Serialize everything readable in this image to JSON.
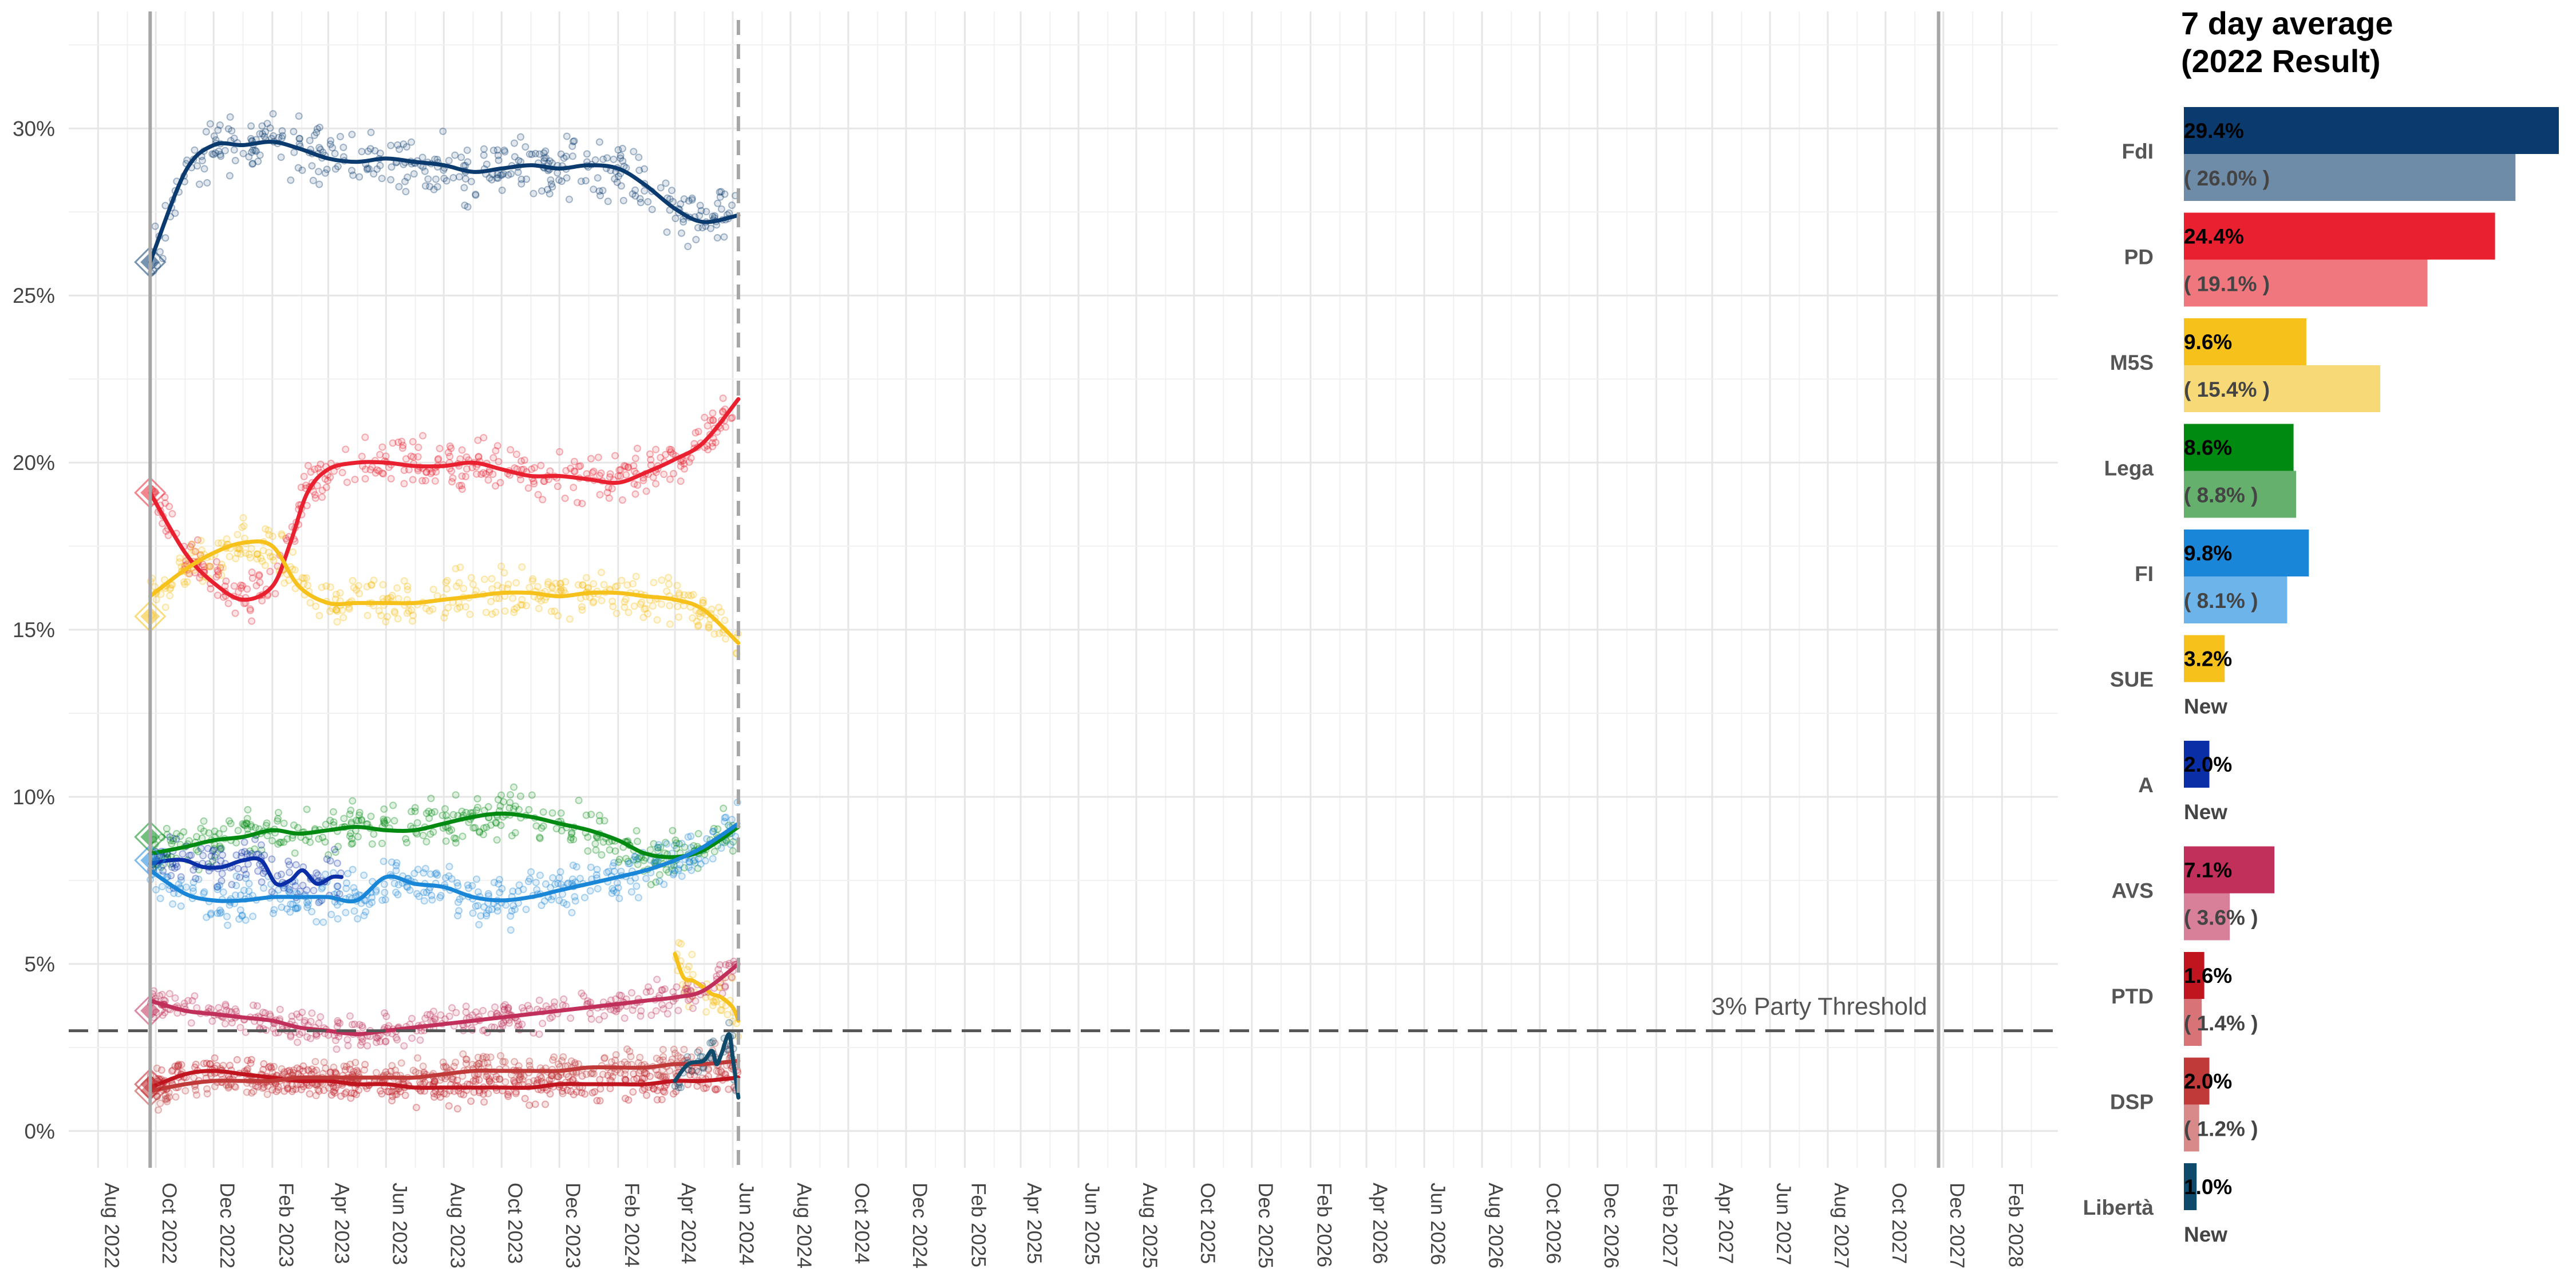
{
  "chart_data": [
    {
      "type": "scatter",
      "title": "",
      "xlabel": "",
      "ylabel": "",
      "ylim": [
        -1.1,
        33.5
      ],
      "xlim": [
        "2022-07-01",
        "2028-03-31"
      ],
      "x_ticks": [
        "Aug 2022",
        "Oct 2022",
        "Dec 2022",
        "Feb 2023",
        "Apr 2023",
        "Jun 2023",
        "Aug 2023",
        "Oct 2023",
        "Dec 2023",
        "Feb 2024",
        "Apr 2024",
        "Jun 2024",
        "Aug 2024",
        "Oct 2024",
        "Dec 2024",
        "Feb 2025",
        "Apr 2025",
        "Jun 2025",
        "Aug 2025",
        "Oct 2025",
        "Dec 2025",
        "Feb 2026",
        "Apr 2026",
        "Jun 2026",
        "Aug 2026",
        "Oct 2026",
        "Dec 2026",
        "Feb 2027",
        "Apr 2027",
        "Jun 2027",
        "Aug 2027",
        "Oct 2027",
        "Dec 2027",
        "Feb 2028"
      ],
      "x_tick_dates": [
        "2022-08-01",
        "2022-10-01",
        "2022-12-01",
        "2023-02-01",
        "2023-04-01",
        "2023-06-01",
        "2023-08-01",
        "2023-10-01",
        "2023-12-01",
        "2024-02-01",
        "2024-04-01",
        "2024-06-01",
        "2024-08-01",
        "2024-10-01",
        "2024-12-01",
        "2025-02-01",
        "2025-04-01",
        "2025-06-01",
        "2025-08-01",
        "2025-10-01",
        "2025-12-01",
        "2026-02-01",
        "2026-04-01",
        "2026-06-01",
        "2026-08-01",
        "2026-10-01",
        "2026-12-01",
        "2027-02-01",
        "2027-04-01",
        "2027-06-01",
        "2027-08-01",
        "2027-10-01",
        "2027-12-01",
        "2028-02-01"
      ],
      "y_ticks": [
        0,
        5,
        10,
        15,
        20,
        25,
        30
      ],
      "y_tick_labels": [
        "0%",
        "5%",
        "10%",
        "15%",
        "20%",
        "25%",
        "30%"
      ],
      "grid": true,
      "threshold": {
        "value": 3,
        "label": "3% Party Threshold"
      },
      "election_date": "2022-09-25",
      "latest_date": "2024-06-07",
      "next_election_date": "2027-11-26",
      "series": [
        {
          "name": "FdI",
          "color": "#0a3a6e",
          "result_2022": 26.0,
          "x": [
            "2022-09-25",
            "2022-11-01",
            "2022-12-01",
            "2023-01-01",
            "2023-02-01",
            "2023-03-01",
            "2023-04-01",
            "2023-05-01",
            "2023-06-01",
            "2023-07-01",
            "2023-08-01",
            "2023-09-01",
            "2023-10-01",
            "2023-11-01",
            "2023-12-01",
            "2024-01-01",
            "2024-02-01",
            "2024-03-01",
            "2024-04-01",
            "2024-05-01",
            "2024-06-07"
          ],
          "y": [
            26.0,
            28.7,
            29.5,
            29.5,
            29.6,
            29.4,
            29.1,
            29.0,
            29.1,
            29.0,
            28.9,
            28.7,
            28.8,
            28.9,
            28.8,
            28.9,
            28.8,
            28.3,
            27.6,
            27.2,
            27.4
          ]
        },
        {
          "name": "PD",
          "color": "#e8202f",
          "result_2022": 19.1,
          "x": [
            "2022-09-25",
            "2022-11-01",
            "2022-12-01",
            "2023-01-01",
            "2023-02-01",
            "2023-02-20",
            "2023-03-10",
            "2023-04-01",
            "2023-05-01",
            "2023-06-01",
            "2023-07-01",
            "2023-08-01",
            "2023-09-01",
            "2023-10-01",
            "2023-11-01",
            "2023-12-01",
            "2024-01-01",
            "2024-02-01",
            "2024-03-01",
            "2024-04-01",
            "2024-05-01",
            "2024-06-07"
          ],
          "y": [
            19.1,
            17.3,
            16.4,
            15.9,
            16.3,
            17.6,
            19.1,
            19.8,
            20.0,
            20.0,
            19.9,
            19.9,
            20.0,
            19.8,
            19.6,
            19.6,
            19.5,
            19.4,
            19.7,
            20.1,
            20.6,
            21.9
          ]
        },
        {
          "name": "M5S",
          "color": "#f5c11a",
          "result_2022": 15.4,
          "x": [
            "2022-09-25",
            "2022-11-01",
            "2022-12-01",
            "2023-01-01",
            "2023-02-01",
            "2023-03-01",
            "2023-04-01",
            "2023-05-01",
            "2023-06-01",
            "2023-07-01",
            "2023-08-01",
            "2023-09-01",
            "2023-10-01",
            "2023-11-01",
            "2023-12-01",
            "2024-01-01",
            "2024-02-01",
            "2024-03-01",
            "2024-04-01",
            "2024-05-01",
            "2024-06-07"
          ],
          "y": [
            16.0,
            16.8,
            17.3,
            17.6,
            17.5,
            16.3,
            15.8,
            15.8,
            15.8,
            15.8,
            15.9,
            16.0,
            16.1,
            16.1,
            16.0,
            16.1,
            16.1,
            16.0,
            15.9,
            15.6,
            14.6
          ]
        },
        {
          "name": "Lega",
          "color": "#008a12",
          "result_2022": 8.8,
          "x": [
            "2022-09-25",
            "2022-11-01",
            "2022-12-01",
            "2023-01-01",
            "2023-02-01",
            "2023-03-01",
            "2023-04-01",
            "2023-05-01",
            "2023-06-01",
            "2023-07-01",
            "2023-08-01",
            "2023-09-01",
            "2023-10-01",
            "2023-11-01",
            "2023-12-01",
            "2024-01-01",
            "2024-02-01",
            "2024-03-01",
            "2024-04-01",
            "2024-05-01",
            "2024-06-07"
          ],
          "y": [
            8.3,
            8.5,
            8.7,
            8.8,
            9.0,
            8.9,
            9.0,
            9.1,
            9.0,
            9.0,
            9.2,
            9.4,
            9.5,
            9.4,
            9.2,
            9.0,
            8.7,
            8.3,
            8.2,
            8.4,
            9.1
          ]
        },
        {
          "name": "FI",
          "color": "#1a86d8",
          "result_2022": 8.1,
          "x": [
            "2022-09-25",
            "2022-11-01",
            "2022-12-01",
            "2023-01-01",
            "2023-02-01",
            "2023-03-01",
            "2023-04-01",
            "2023-05-01",
            "2023-06-01",
            "2023-07-01",
            "2023-08-01",
            "2023-09-01",
            "2023-10-01",
            "2023-11-01",
            "2023-12-01",
            "2024-01-01",
            "2024-02-01",
            "2024-03-01",
            "2024-04-01",
            "2024-05-01",
            "2024-06-07"
          ],
          "y": [
            7.8,
            7.1,
            6.9,
            6.9,
            7.0,
            7.0,
            7.0,
            6.9,
            7.6,
            7.4,
            7.3,
            7.0,
            6.9,
            7.0,
            7.2,
            7.4,
            7.6,
            7.8,
            8.1,
            8.5,
            9.2
          ]
        },
        {
          "name": "SUE",
          "color": "#f5c11a",
          "result_2022": null,
          "x": [
            "2024-04-01",
            "2024-04-10",
            "2024-04-20",
            "2024-05-01",
            "2024-05-10",
            "2024-05-20",
            "2024-06-01",
            "2024-06-07"
          ],
          "y": [
            5.3,
            4.6,
            4.5,
            4.3,
            4.1,
            4.0,
            3.7,
            3.3
          ]
        },
        {
          "name": "A",
          "color": "#0a2ea6",
          "result_2022": null,
          "x": [
            "2022-09-25",
            "2022-10-15",
            "2022-11-01",
            "2022-11-20",
            "2022-12-10",
            "2023-01-01",
            "2023-01-20",
            "2023-02-05",
            "2023-02-20",
            "2023-03-05",
            "2023-03-20",
            "2023-04-05",
            "2023-04-15"
          ],
          "y": [
            8.0,
            8.1,
            8.1,
            7.9,
            7.9,
            8.1,
            8.1,
            7.4,
            7.5,
            7.8,
            7.4,
            7.6,
            7.6
          ]
        },
        {
          "name": "AVS",
          "color": "#c0305a",
          "result_2022": 3.6,
          "x": [
            "2022-09-25",
            "2022-11-01",
            "2022-12-01",
            "2023-01-01",
            "2023-02-01",
            "2023-03-01",
            "2023-04-01",
            "2023-05-01",
            "2023-06-01",
            "2023-07-01",
            "2023-08-01",
            "2023-09-01",
            "2023-10-01",
            "2023-11-01",
            "2023-12-01",
            "2024-01-01",
            "2024-02-01",
            "2024-03-01",
            "2024-04-01",
            "2024-05-01",
            "2024-06-07"
          ],
          "y": [
            3.9,
            3.6,
            3.5,
            3.4,
            3.3,
            3.1,
            3.0,
            2.9,
            3.0,
            3.1,
            3.2,
            3.3,
            3.4,
            3.5,
            3.6,
            3.7,
            3.8,
            3.9,
            4.0,
            4.2,
            5.0
          ]
        },
        {
          "name": "PTD",
          "color": "#c0141e",
          "result_2022": 1.4,
          "x": [
            "2022-09-25",
            "2022-11-01",
            "2022-12-01",
            "2023-01-01",
            "2023-02-01",
            "2023-03-01",
            "2023-04-01",
            "2023-05-01",
            "2023-06-01",
            "2023-07-01",
            "2023-08-01",
            "2023-09-01",
            "2023-10-01",
            "2023-11-01",
            "2023-12-01",
            "2024-01-01",
            "2024-02-01",
            "2024-03-01",
            "2024-04-01",
            "2024-05-01",
            "2024-06-07"
          ],
          "y": [
            1.3,
            1.7,
            1.8,
            1.7,
            1.6,
            1.5,
            1.5,
            1.4,
            1.4,
            1.3,
            1.3,
            1.3,
            1.3,
            1.3,
            1.4,
            1.4,
            1.4,
            1.4,
            1.5,
            1.5,
            1.6
          ]
        },
        {
          "name": "DSP",
          "color": "#c03a3a",
          "result_2022": 1.2,
          "x": [
            "2022-09-25",
            "2022-11-01",
            "2022-12-01",
            "2023-01-01",
            "2023-02-01",
            "2023-03-01",
            "2023-04-01",
            "2023-05-01",
            "2023-06-01",
            "2023-07-01",
            "2023-08-01",
            "2023-09-01",
            "2023-10-01",
            "2023-11-01",
            "2023-12-01",
            "2024-01-01",
            "2024-02-01",
            "2024-03-01",
            "2024-04-01",
            "2024-05-01",
            "2024-06-07"
          ],
          "y": [
            1.2,
            1.4,
            1.5,
            1.5,
            1.5,
            1.6,
            1.6,
            1.6,
            1.6,
            1.6,
            1.7,
            1.8,
            1.8,
            1.8,
            1.8,
            1.9,
            1.9,
            1.9,
            2.0,
            2.0,
            2.1
          ]
        },
        {
          "name": "Libertà",
          "color": "#0f4a6a",
          "result_2022": null,
          "x": [
            "2024-04-01",
            "2024-04-15",
            "2024-05-01",
            "2024-05-10",
            "2024-05-15",
            "2024-05-20",
            "2024-05-28",
            "2024-06-01",
            "2024-06-07"
          ],
          "y": [
            1.5,
            2.0,
            2.1,
            2.4,
            2.0,
            2.3,
            2.9,
            2.2,
            1.0
          ]
        }
      ]
    },
    {
      "type": "bar",
      "title": "7 day average\n(2022 Result)",
      "title_lines": [
        "7 day average",
        "(2022 Result)"
      ],
      "categories": [
        "FdI",
        "PD",
        "M5S",
        "Lega",
        "FI",
        "SUE",
        "A",
        "AVS",
        "PTD",
        "DSP",
        "Libertà"
      ],
      "series": [
        {
          "name": "7 day average",
          "values": [
            29.4,
            24.4,
            9.6,
            8.6,
            9.8,
            3.2,
            2.0,
            7.1,
            1.6,
            2.0,
            1.0
          ],
          "labels": [
            "29.4%",
            "24.4%",
            "9.6%",
            "8.6%",
            "9.8%",
            "3.2%",
            "2.0%",
            "7.1%",
            "1.6%",
            "2.0%",
            "1.0%"
          ]
        },
        {
          "name": "2022 Result",
          "values": [
            26.0,
            19.1,
            15.4,
            8.8,
            8.1,
            null,
            null,
            3.6,
            1.4,
            1.2,
            null
          ],
          "labels": [
            "( 26.0% )",
            "( 19.1% )",
            "( 15.4% )",
            "( 8.8% )",
            "( 8.1% )",
            "New",
            "New",
            "( 3.6% )",
            "( 1.4% )",
            "( 1.2% )",
            "New"
          ]
        }
      ],
      "colors": [
        "#0a3a6e",
        "#e8202f",
        "#f5c11a",
        "#008a12",
        "#1a86d8",
        "#f5c11a",
        "#0a2ea6",
        "#c0305a",
        "#c0141e",
        "#c03a3a",
        "#0f4a6a"
      ],
      "result_colors": [
        "#6e8ca8",
        "#f0777d",
        "#f7d978",
        "#64b06c",
        "#6cb4ea",
        "#f7d978",
        "#6e86c8",
        "#d87f9a",
        "#d87378",
        "#d8898a",
        "#6e92a6"
      ]
    }
  ]
}
